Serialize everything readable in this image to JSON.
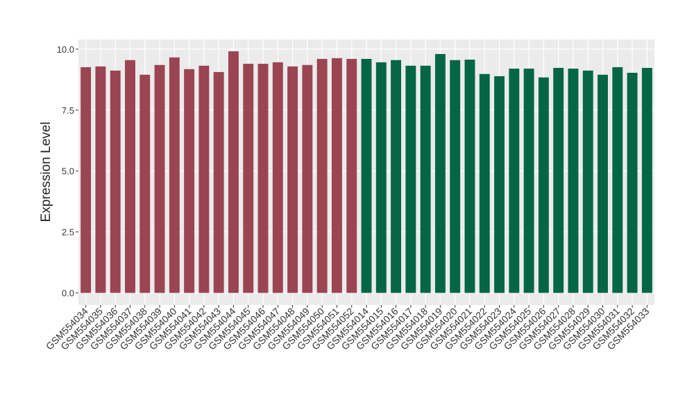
{
  "chart_data": {
    "type": "bar",
    "y_label": "Expression Level",
    "categories": [
      "GSM554034",
      "GSM554035",
      "GSM554036",
      "GSM554037",
      "GSM554038",
      "GSM554039",
      "GSM554040",
      "GSM554041",
      "GSM554042",
      "GSM554043",
      "GSM554044",
      "GSM554045",
      "GSM554046",
      "GSM554047",
      "GSM554048",
      "GSM554049",
      "GSM554050",
      "GSM554051",
      "GSM554052",
      "GSM554014",
      "GSM554015",
      "GSM554016",
      "GSM554017",
      "GSM554018",
      "GSM554019",
      "GSM554020",
      "GSM554021",
      "GSM554022",
      "GSM554023",
      "GSM554024",
      "GSM554025",
      "GSM554026",
      "GSM554027",
      "GSM554028",
      "GSM554029",
      "GSM554030",
      "GSM554031",
      "GSM554032",
      "GSM554033"
    ],
    "values": [
      9.26,
      9.29,
      9.12,
      9.55,
      8.95,
      9.35,
      9.66,
      9.18,
      9.32,
      9.06,
      9.91,
      9.4,
      9.4,
      9.46,
      9.29,
      9.35,
      9.6,
      9.63,
      9.6,
      9.6,
      9.46,
      9.55,
      9.32,
      9.32,
      9.8,
      9.55,
      9.57,
      8.98,
      8.89,
      9.2,
      9.2,
      8.84,
      9.23,
      9.2,
      9.12,
      8.95,
      9.26,
      9.03,
      9.23
    ],
    "colors": [
      "#9b4452",
      "#9b4452",
      "#9b4452",
      "#9b4452",
      "#9b4452",
      "#9b4452",
      "#9b4452",
      "#9b4452",
      "#9b4452",
      "#9b4452",
      "#9b4452",
      "#9b4452",
      "#9b4452",
      "#9b4452",
      "#9b4452",
      "#9b4452",
      "#9b4452",
      "#9b4452",
      "#9b4452",
      "#046645",
      "#046645",
      "#046645",
      "#046645",
      "#046645",
      "#046645",
      "#046645",
      "#046645",
      "#046645",
      "#046645",
      "#046645",
      "#046645",
      "#046645",
      "#046645",
      "#046645",
      "#046645",
      "#046645",
      "#046645",
      "#046645",
      "#046645"
    ],
    "ylim": [
      -0.495,
      10.395
    ],
    "yticks": [
      {
        "value": 0,
        "label": "0.0"
      },
      2.5,
      {
        "value": 5,
        "label": "5.0"
      },
      7.5,
      {
        "value": 10,
        "label": "10.0"
      }
    ],
    "grid": true
  }
}
